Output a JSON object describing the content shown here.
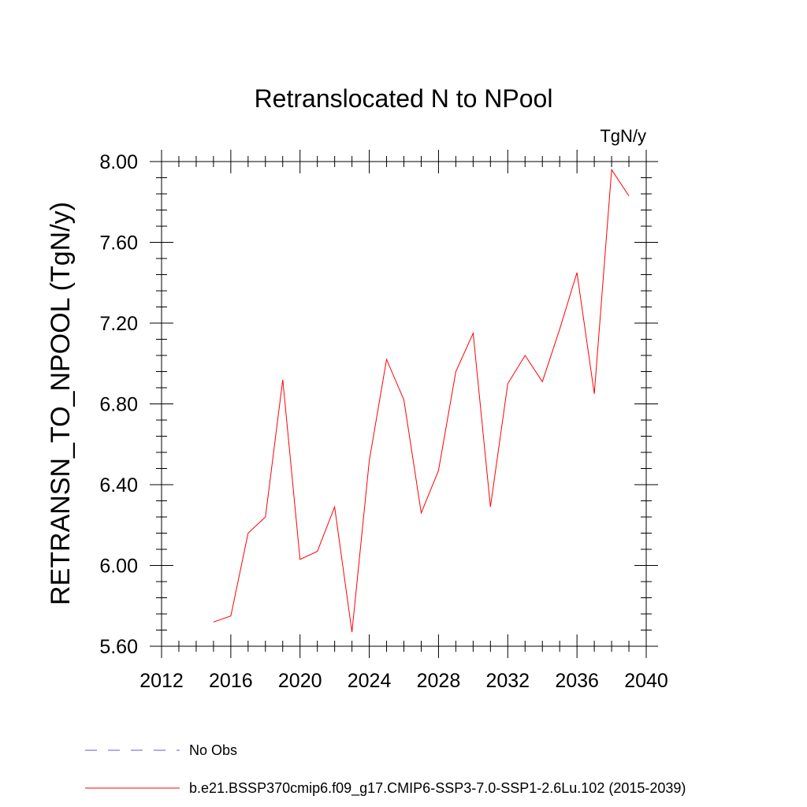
{
  "chart_data": {
    "type": "line",
    "title": "Retranslocated N to NPool",
    "units": "TgN/y",
    "xlabel": "",
    "ylabel": "RETRANSN_TO_NPOOL  (TgN/y)",
    "xlim": [
      2012,
      2040
    ],
    "ylim": [
      5.6,
      8.0
    ],
    "xticks": [
      2012,
      2016,
      2020,
      2024,
      2028,
      2032,
      2036,
      2040
    ],
    "yticks": [
      5.6,
      6.0,
      6.4,
      6.8,
      7.2,
      7.6,
      8.0
    ],
    "ytick_labels": [
      "5.60",
      "6.00",
      "6.40",
      "6.80",
      "7.20",
      "7.60",
      "8.00"
    ],
    "grid": false,
    "series": [
      {
        "name": "b.e21.BSSP370cmip6.f09_g17.CMIP6-SSP3-7.0-SSP1-2.6Lu.102 (2015-2039)",
        "color": "#ff0000",
        "x": [
          2015,
          2016,
          2017,
          2018,
          2019,
          2020,
          2021,
          2022,
          2023,
          2024,
          2025,
          2026,
          2027,
          2028,
          2029,
          2030,
          2031,
          2032,
          2033,
          2034,
          2035,
          2036,
          2037,
          2038,
          2039
        ],
        "y": [
          5.72,
          5.75,
          6.16,
          6.24,
          6.92,
          6.03,
          6.07,
          6.29,
          5.67,
          6.52,
          7.02,
          6.82,
          6.26,
          6.47,
          6.96,
          7.15,
          6.29,
          6.9,
          7.04,
          6.91,
          7.17,
          7.45,
          6.85,
          7.96,
          7.83
        ]
      }
    ],
    "legend": [
      {
        "label": "No Obs",
        "color": "#6a5acd",
        "style": "dashed"
      },
      {
        "label": "b.e21.BSSP370cmip6.f09_g17.CMIP6-SSP3-7.0-SSP1-2.6Lu.102 (2015-2039)",
        "color": "#ff0000",
        "style": "solid"
      }
    ],
    "legend_position": "bottom"
  }
}
